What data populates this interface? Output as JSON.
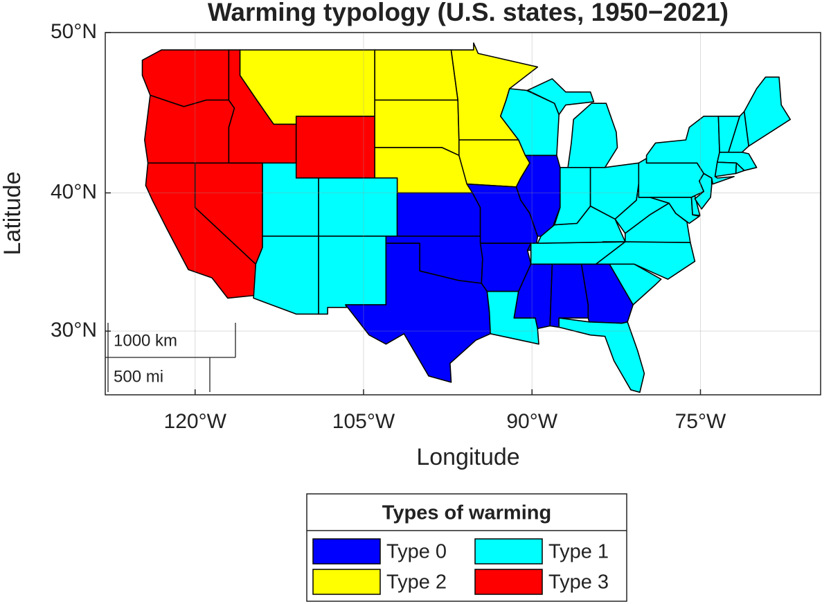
{
  "chart_data": {
    "type": "map",
    "title": "Warming typology (U.S. states, 1950−2021)",
    "xlabel": "Longitude",
    "ylabel": "Latitude",
    "projection": "mercator",
    "xlim": [
      -128,
      -64.3
    ],
    "ylim": [
      25,
      50
    ],
    "xticks": [
      {
        "value": -120,
        "label": "120°W"
      },
      {
        "value": -105,
        "label": "105°W"
      },
      {
        "value": -90,
        "label": "90°W"
      },
      {
        "value": -75,
        "label": "75°W"
      }
    ],
    "yticks": [
      {
        "value": 30,
        "label": "30°N"
      },
      {
        "value": 40,
        "label": "40°N"
      },
      {
        "value": 50,
        "label": "50°N"
      }
    ],
    "grid": true,
    "scale_bar": [
      "1000 km",
      "500 mi"
    ],
    "legend": {
      "title": "Types of warming",
      "items": [
        {
          "name": "Type 0",
          "color": "#0000ff"
        },
        {
          "name": "Type 1",
          "color": "#00ffff"
        },
        {
          "name": "Type 2",
          "color": "#ffff00"
        },
        {
          "name": "Type 3",
          "color": "#ff0000"
        }
      ]
    }
  }
}
